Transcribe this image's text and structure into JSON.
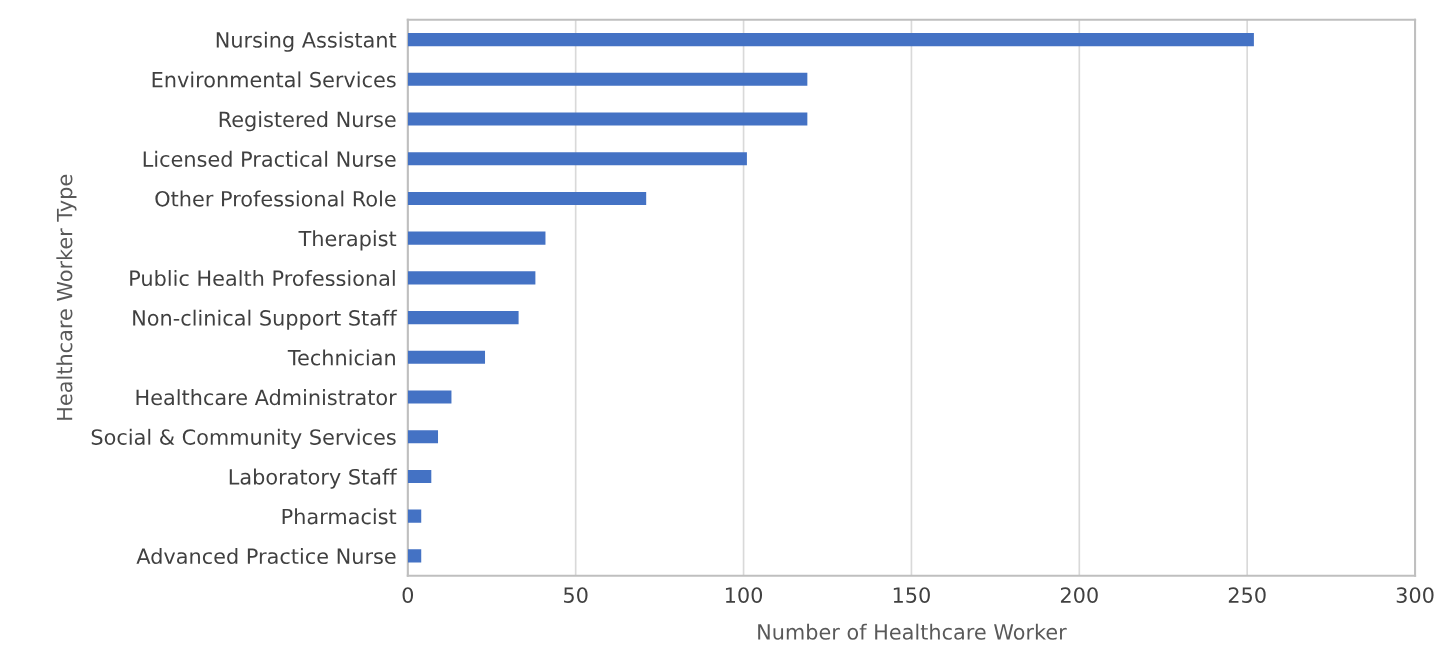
{
  "chart_data": {
    "type": "bar",
    "orientation": "horizontal",
    "xlabel": "Number of Healthcare Worker",
    "ylabel": "Healthcare Worker Type",
    "categories": [
      "Nursing Assistant",
      "Environmental Services",
      "Registered Nurse",
      "Licensed Practical Nurse",
      "Other Professional Role",
      "Therapist",
      "Public Health Professional",
      "Non-clinical Support Staff",
      "Technician",
      "Healthcare Administrator",
      "Social & Community Services",
      "Laboratory Staff",
      "Pharmacist",
      "Advanced Practice Nurse"
    ],
    "values": [
      252,
      119,
      119,
      101,
      71,
      41,
      38,
      33,
      23,
      13,
      9,
      7,
      4,
      4
    ],
    "color": "#4472c4",
    "xlim": [
      0,
      300
    ],
    "xticks": [
      0,
      50,
      100,
      150,
      200,
      250,
      300
    ],
    "grid": "x",
    "legend": false
  }
}
